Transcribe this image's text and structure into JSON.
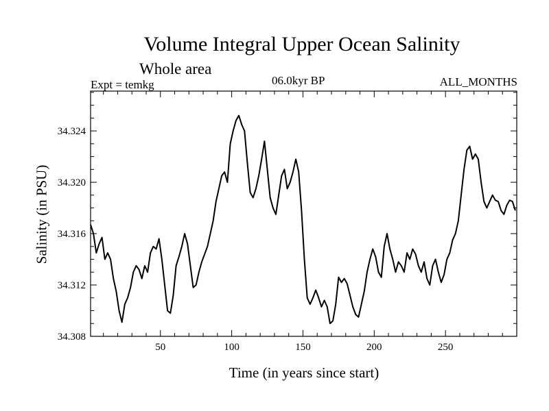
{
  "chart_data": {
    "type": "line",
    "title": "Volume Integral Upper Ocean Salinity",
    "subtitle": "Whole area",
    "experiment": "Expt = temkg",
    "period": "06.0kyr BP",
    "months": "ALL_MONTHS",
    "xlabel": "Time (in years since start)",
    "ylabel": "Salinity (in PSU)",
    "xlim": [
      1,
      300
    ],
    "ylim": [
      34.308,
      34.3271
    ],
    "xticks": [
      50,
      100,
      150,
      200,
      250
    ],
    "xtick_labels": [
      "50",
      "100",
      "150",
      "200",
      "250"
    ],
    "yticks": [
      34.308,
      34.312,
      34.316,
      34.32,
      34.324
    ],
    "ytick_labels": [
      "34.308",
      "34.312",
      "34.316",
      "34.320",
      "34.324"
    ],
    "series": [
      {
        "name": "Salinity",
        "x": [
          1,
          3,
          5,
          7,
          9,
          11,
          13,
          15,
          17,
          19,
          21,
          23,
          25,
          27,
          29,
          31,
          33,
          35,
          37,
          39,
          41,
          43,
          45,
          47,
          49,
          51,
          53,
          55,
          57,
          59,
          61,
          63,
          65,
          67,
          69,
          71,
          73,
          75,
          77,
          79,
          81,
          83,
          85,
          87,
          89,
          91,
          93,
          95,
          97,
          99,
          101,
          103,
          105,
          107,
          109,
          111,
          113,
          115,
          117,
          119,
          121,
          123,
          125,
          127,
          129,
          131,
          133,
          135,
          137,
          139,
          141,
          143,
          145,
          147,
          149,
          151,
          153,
          155,
          157,
          159,
          161,
          163,
          165,
          167,
          169,
          171,
          173,
          175,
          177,
          179,
          181,
          183,
          185,
          187,
          189,
          191,
          193,
          195,
          197,
          199,
          201,
          203,
          205,
          207,
          209,
          211,
          213,
          215,
          217,
          219,
          221,
          223,
          225,
          227,
          229,
          231,
          233,
          235,
          237,
          239,
          241,
          243,
          245,
          247,
          249,
          251,
          253,
          255,
          257,
          259,
          261,
          263,
          265,
          267,
          269,
          271,
          273,
          275,
          277,
          279,
          281,
          283,
          285,
          287,
          289,
          291,
          293,
          295,
          297,
          299
        ],
        "values": [
          34.3167,
          34.316,
          34.3145,
          34.3152,
          34.3157,
          34.314,
          34.3145,
          34.314,
          34.3125,
          34.3115,
          34.31,
          34.3091,
          34.3105,
          34.311,
          34.3118,
          34.313,
          34.3135,
          34.3132,
          34.3125,
          34.3135,
          34.313,
          34.3145,
          34.315,
          34.3148,
          34.3156,
          34.314,
          34.312,
          34.31,
          34.3098,
          34.3112,
          34.3135,
          34.3142,
          34.315,
          34.316,
          34.3152,
          34.3135,
          34.3118,
          34.312,
          34.313,
          34.3138,
          34.3144,
          34.315,
          34.316,
          34.317,
          34.3185,
          34.3195,
          34.3205,
          34.3208,
          34.32,
          34.323,
          34.324,
          34.3248,
          34.3252,
          34.3245,
          34.324,
          34.3215,
          34.3192,
          34.3188,
          34.3195,
          34.3205,
          34.3218,
          34.3232,
          34.321,
          34.3188,
          34.318,
          34.3175,
          34.319,
          34.3205,
          34.321,
          34.3195,
          34.32,
          34.3208,
          34.3218,
          34.3208,
          34.3178,
          34.314,
          34.311,
          34.3105,
          34.311,
          34.3116,
          34.311,
          34.3103,
          34.3108,
          34.3103,
          34.309,
          34.3092,
          34.3105,
          34.3126,
          34.3122,
          34.3125,
          34.3121,
          34.3112,
          34.3103,
          34.3097,
          34.3095,
          34.3105,
          34.3115,
          34.313,
          34.314,
          34.3148,
          34.3142,
          34.313,
          34.3126,
          34.315,
          34.316,
          34.3148,
          34.314,
          34.313,
          34.3138,
          34.3135,
          34.313,
          34.3145,
          34.314,
          34.3148,
          34.3144,
          34.3135,
          34.313,
          34.3138,
          34.3125,
          34.312,
          34.3135,
          34.314,
          34.313,
          34.3122,
          34.3128,
          34.314,
          34.3145,
          34.3155,
          34.316,
          34.317,
          34.319,
          34.321,
          34.3225,
          34.3228,
          34.3218,
          34.3222,
          34.3218,
          34.32,
          34.3185,
          34.318,
          34.3185,
          34.319,
          34.3186,
          34.3185,
          34.3178,
          34.3175,
          34.3182,
          34.3186,
          34.3185,
          34.3178
        ]
      }
    ],
    "grid": false,
    "legend": "none"
  }
}
